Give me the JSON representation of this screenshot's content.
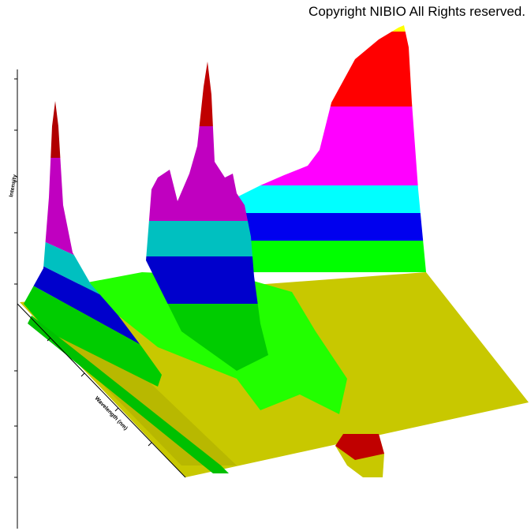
{
  "header": {
    "copyright": "Copyright NIBIO All Rights reserved."
  },
  "axes": {
    "x_label": "Wavelength (nm)",
    "z_label": "Intensity"
  }
}
